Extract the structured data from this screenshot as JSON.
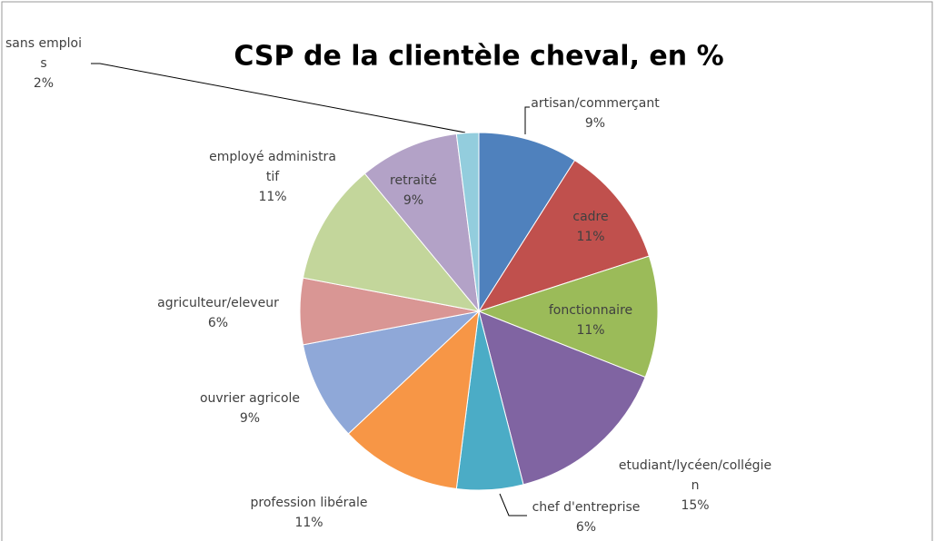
{
  "chart_data": {
    "type": "pie",
    "title": "CSP de la clientèle cheval, en %",
    "categories": [
      "artisan/commerçant",
      "cadre",
      "fonctionnaire",
      "etudiant/lycéen/collégien",
      "chef d'entreprise",
      "profession libérale",
      "ouvrier agricole",
      "agriculteur/eleveur",
      "employé administratif",
      "retraité",
      "sans emplois"
    ],
    "values": [
      9,
      11,
      11,
      15,
      6,
      11,
      9,
      6,
      11,
      9,
      2
    ],
    "value_labels": [
      "9%",
      "11%",
      "11%",
      "15%",
      "6%",
      "11%",
      "9%",
      "6%",
      "11%",
      "9%",
      "2%"
    ],
    "colors": [
      "#4f81bd",
      "#c0504d",
      "#9bbb59",
      "#8064a2",
      "#4bacc6",
      "#f79646",
      "#8fa8d8",
      "#d99694",
      "#c3d69b",
      "#b3a2c7",
      "#93cddd"
    ]
  }
}
